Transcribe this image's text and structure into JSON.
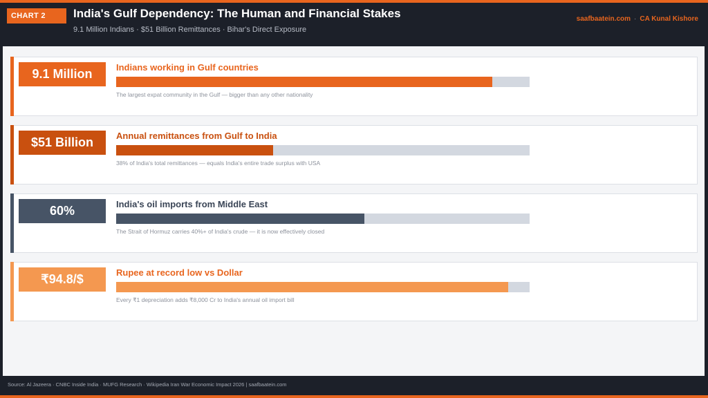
{
  "header": {
    "tag": "CHART 2",
    "title": "India's Gulf Dependency: The Human and Financial Stakes",
    "subtitle": "9.1 Million Indians · $51 Billion Remittances · Bihar's Direct Exposure",
    "site": "saafbaatein.com",
    "separator": "·",
    "author": "CA Kunal Kishore"
  },
  "colors": {
    "orange": "#e8651e",
    "dark_orange": "#c9500f",
    "slate": "#475466",
    "light_orange": "#f49850",
    "track": "#d3d8e0"
  },
  "chart_data": {
    "type": "bar",
    "orientation": "horizontal",
    "items": [
      {
        "value_label": "9.1 Million",
        "label": "Indians working in Gulf countries",
        "fill_fraction": 0.91,
        "note": "The largest expat community in the Gulf — bigger than any other nationality",
        "color": "#e8651e",
        "label_color": "#e8651e"
      },
      {
        "value_label": "$51 Billion",
        "label": "Annual remittances from Gulf to India",
        "fill_fraction": 0.38,
        "note": "38% of India's total remittances — equals India's entire trade surplus with USA",
        "color": "#c9500f",
        "label_color": "#c9500f"
      },
      {
        "value_label": "60%",
        "label": "India's oil imports from Middle East",
        "fill_fraction": 0.6,
        "note": "The Strait of Hormuz carries 40%+ of India's crude — it is now effectively closed",
        "color": "#475466",
        "label_color": "#3a4556"
      },
      {
        "value_label": "₹94.8/$",
        "label": "Rupee at record low vs Dollar",
        "fill_fraction": 0.948,
        "note": "Every ₹1 depreciation adds ₹8,000 Cr to India's annual oil import bill",
        "color": "#f49850",
        "label_color": "#e8651e"
      }
    ]
  },
  "footer": {
    "source": "Source: Al Jazeera · CNBC Inside India · MUFG Research · Wikipedia Iran War Economic Impact 2026  |  saafbaatein.com"
  }
}
